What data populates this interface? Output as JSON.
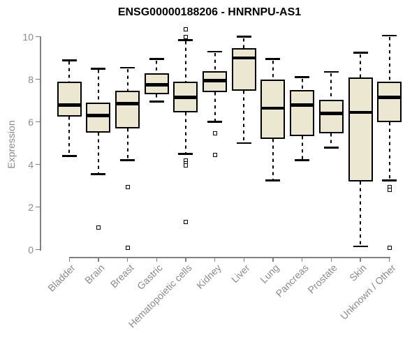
{
  "title": "ENSG00000188206 - HNRNPU-AS1",
  "chart_data": {
    "type": "boxplot",
    "title": "ENSG00000188206 - HNRNPU-AS1",
    "xlabel": "",
    "ylabel": "Expression",
    "ylim": [
      0,
      10
    ],
    "yticks": [
      0,
      2,
      4,
      6,
      8,
      10
    ],
    "grid": false,
    "legend": false,
    "categories": [
      "Bladder",
      "Brain",
      "Breast",
      "Gastric",
      "Hematopoietic cells",
      "Kidney",
      "Liver",
      "Lung",
      "Pancreas",
      "Prostate",
      "Skin",
      "Unknown / Other"
    ],
    "boxes": [
      {
        "category": "Bladder",
        "whisker_low": 4.4,
        "q1": 6.25,
        "median": 6.8,
        "q3": 7.9,
        "whisker_high": 8.9,
        "outliers": []
      },
      {
        "category": "Brain",
        "whisker_low": 3.55,
        "q1": 5.5,
        "median": 6.3,
        "q3": 6.9,
        "whisker_high": 8.5,
        "outliers": [
          1.05
        ]
      },
      {
        "category": "Breast",
        "whisker_low": 4.2,
        "q1": 5.7,
        "median": 6.85,
        "q3": 7.45,
        "whisker_high": 8.55,
        "outliers": [
          2.95,
          0.1
        ]
      },
      {
        "category": "Gastric",
        "whisker_low": 6.95,
        "q1": 7.3,
        "median": 7.75,
        "q3": 8.3,
        "whisker_high": 8.95,
        "outliers": []
      },
      {
        "category": "Hematopoietic cells",
        "whisker_low": 4.5,
        "q1": 6.45,
        "median": 7.15,
        "q3": 7.9,
        "whisker_high": 9.85,
        "outliers": [
          10.35,
          10.0,
          4.2,
          4.05,
          3.95,
          1.3
        ]
      },
      {
        "category": "Kidney",
        "whisker_low": 6.0,
        "q1": 7.4,
        "median": 7.95,
        "q3": 8.4,
        "whisker_high": 9.3,
        "outliers": [
          5.45,
          4.45
        ]
      },
      {
        "category": "Liver",
        "whisker_low": 5.0,
        "q1": 7.45,
        "median": 9.0,
        "q3": 9.45,
        "whisker_high": 10.0,
        "outliers": []
      },
      {
        "category": "Lung",
        "whisker_low": 3.25,
        "q1": 5.2,
        "median": 6.65,
        "q3": 8.0,
        "whisker_high": 8.95,
        "outliers": []
      },
      {
        "category": "Pancreas",
        "whisker_low": 4.2,
        "q1": 5.35,
        "median": 6.8,
        "q3": 7.5,
        "whisker_high": 8.1,
        "outliers": []
      },
      {
        "category": "Prostate",
        "whisker_low": 4.8,
        "q1": 5.45,
        "median": 6.4,
        "q3": 7.05,
        "whisker_high": 8.35,
        "outliers": []
      },
      {
        "category": "Skin",
        "whisker_low": 0.15,
        "q1": 3.2,
        "median": 6.45,
        "q3": 8.1,
        "whisker_high": 9.25,
        "outliers": []
      },
      {
        "category": "Unknown / Other",
        "whisker_low": 3.25,
        "q1": 6.0,
        "median": 7.15,
        "q3": 7.9,
        "whisker_high": 10.05,
        "outliers": [
          2.95,
          2.8,
          0.1
        ]
      }
    ],
    "colors": {
      "box_fill": "#ece7d1",
      "box_border": "#000000",
      "median": "#000000",
      "whisker": "#000000",
      "axis": "#808080",
      "axis_text": "#8a8a8a",
      "title_text": "#000000",
      "background": "#ffffff"
    }
  }
}
